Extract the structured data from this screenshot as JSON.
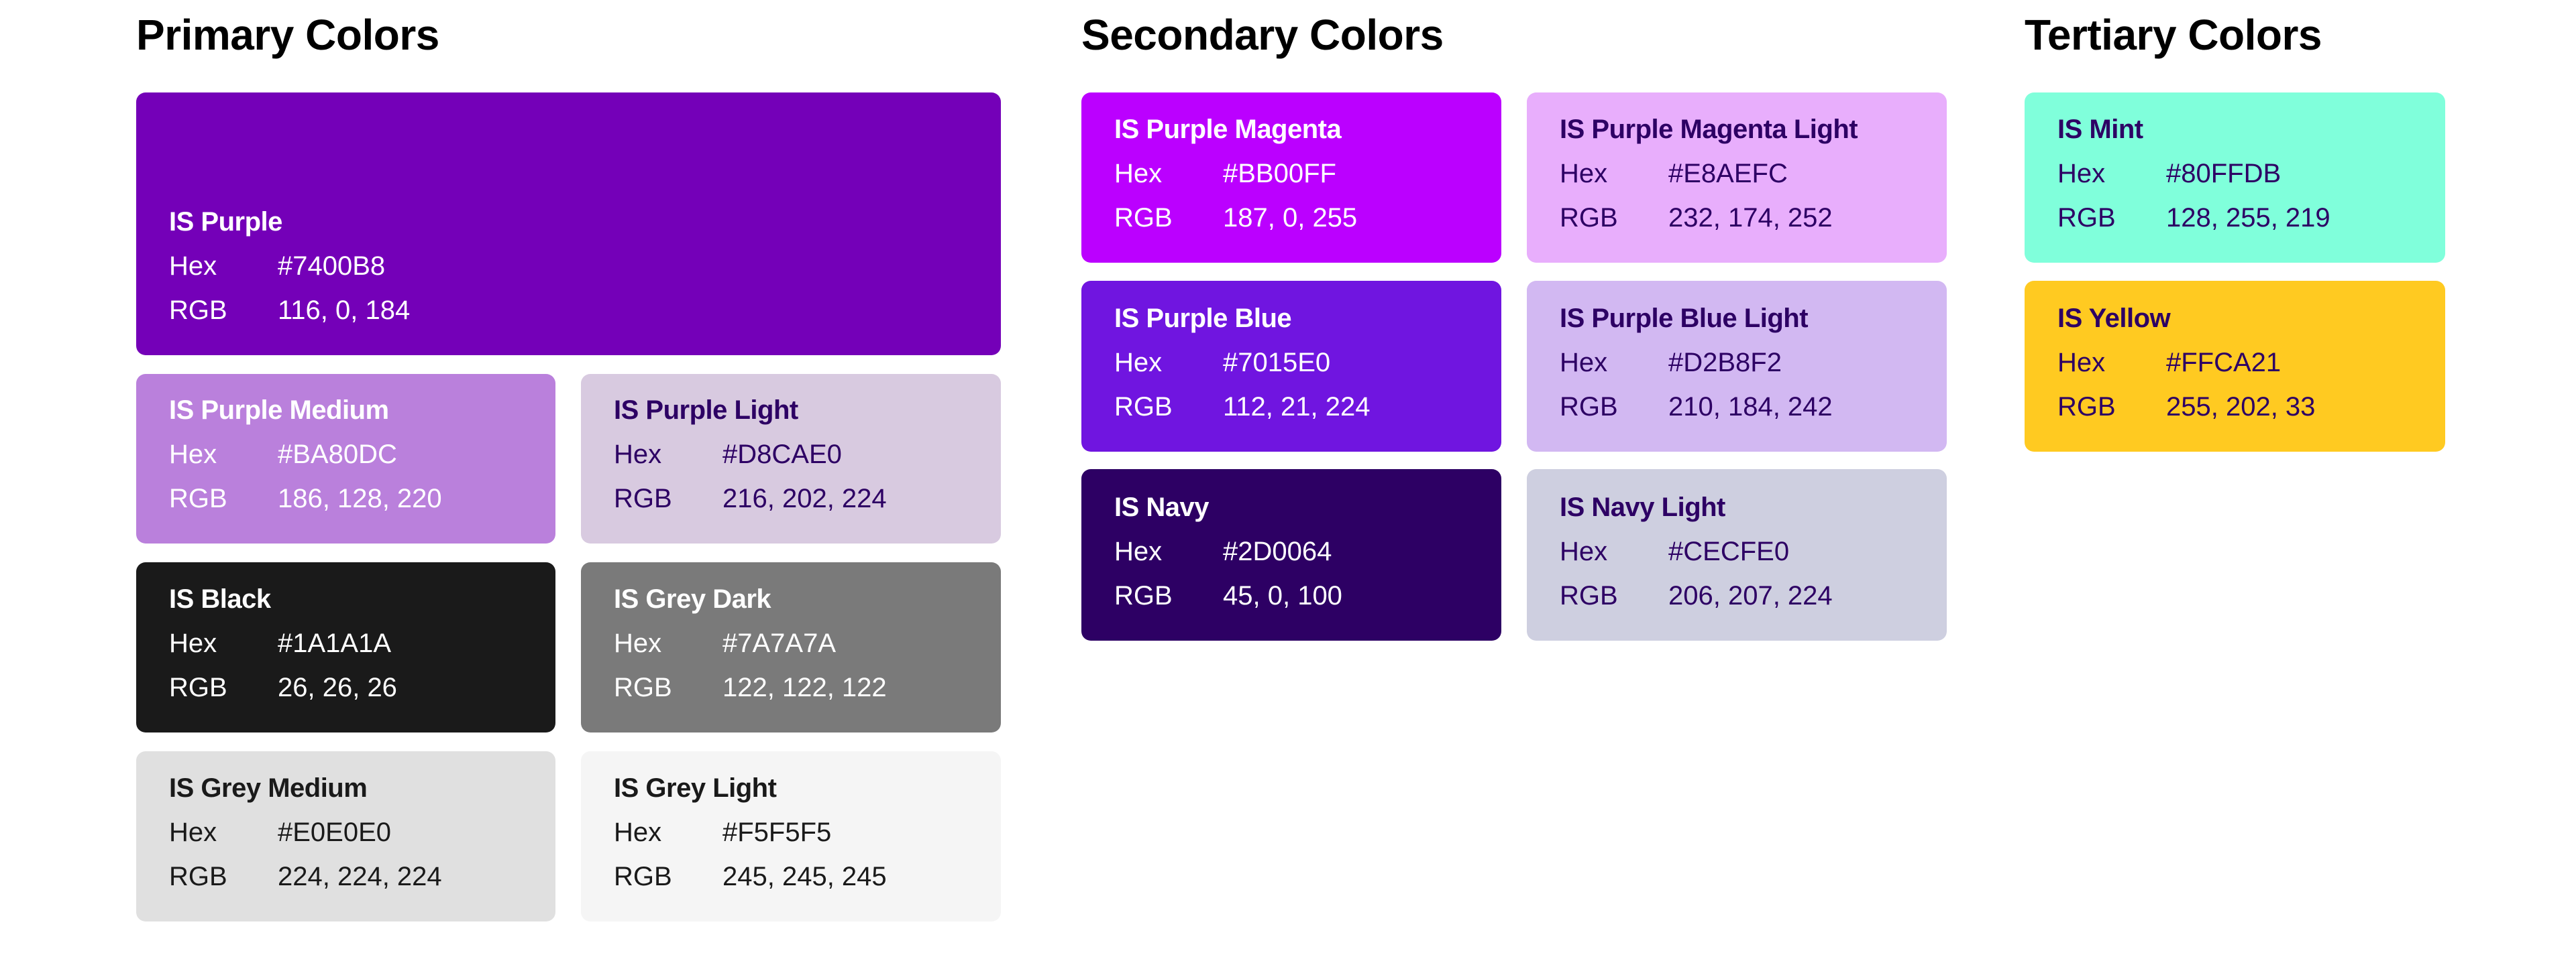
{
  "primary": {
    "title": "Primary Colors",
    "swatches": [
      {
        "name": "IS Purple",
        "hex_label": "Hex",
        "hex": "#7400B8",
        "rgb_label": "RGB",
        "rgb": "116, 0, 184",
        "color": "#7400B8"
      },
      {
        "name": "IS Purple Medium",
        "hex_label": "Hex",
        "hex": "#BA80DC",
        "rgb_label": "RGB",
        "rgb": "186, 128, 220",
        "color": "#BA80DC"
      },
      {
        "name": "IS Purple Light",
        "hex_label": "Hex",
        "hex": "#D8CAE0",
        "rgb_label": "RGB",
        "rgb": "216, 202, 224",
        "color": "#D8CAE0"
      },
      {
        "name": "IS Black",
        "hex_label": "Hex",
        "hex": "#1A1A1A",
        "rgb_label": "RGB",
        "rgb": "26, 26, 26",
        "color": "#1A1A1A"
      },
      {
        "name": "IS Grey Dark",
        "hex_label": "Hex",
        "hex": "#7A7A7A",
        "rgb_label": "RGB",
        "rgb": "122, 122, 122",
        "color": "#7A7A7A"
      },
      {
        "name": "IS Grey Medium",
        "hex_label": "Hex",
        "hex": "#E0E0E0",
        "rgb_label": "RGB",
        "rgb": "224, 224, 224",
        "color": "#E0E0E0"
      },
      {
        "name": "IS Grey Light",
        "hex_label": "Hex",
        "hex": "#F5F5F5",
        "rgb_label": "RGB",
        "rgb": "245, 245, 245",
        "color": "#F5F5F5"
      }
    ]
  },
  "secondary": {
    "title": "Secondary Colors",
    "swatches": [
      {
        "name": "IS Purple Magenta",
        "hex_label": "Hex",
        "hex": "#BB00FF",
        "rgb_label": "RGB",
        "rgb": "187, 0, 255",
        "color": "#BB00FF"
      },
      {
        "name": "IS Purple Magenta Light",
        "hex_label": "Hex",
        "hex": "#E8AEFC",
        "rgb_label": "RGB",
        "rgb": "232, 174, 252",
        "color": "#E8AEFC"
      },
      {
        "name": "IS Purple Blue",
        "hex_label": "Hex",
        "hex": "#7015E0",
        "rgb_label": "RGB",
        "rgb": "112, 21, 224",
        "color": "#7015E0"
      },
      {
        "name": "IS Purple Blue Light",
        "hex_label": "Hex",
        "hex": "#D2B8F2",
        "rgb_label": "RGB",
        "rgb": "210, 184, 242",
        "color": "#D2B8F2"
      },
      {
        "name": "IS Navy",
        "hex_label": "Hex",
        "hex": "#2D0064",
        "rgb_label": "RGB",
        "rgb": "45, 0, 100",
        "color": "#2D0064"
      },
      {
        "name": "IS Navy Light",
        "hex_label": "Hex",
        "hex": "#CECFE0",
        "rgb_label": "RGB",
        "rgb": "206, 207, 224",
        "color": "#CECFE0"
      }
    ]
  },
  "tertiary": {
    "title": "Tertiary Colors",
    "swatches": [
      {
        "name": "IS Mint",
        "hex_label": "Hex",
        "hex": "#80FFDB",
        "rgb_label": "RGB",
        "rgb": "128, 255, 219",
        "color": "#80FFDB"
      },
      {
        "name": "IS Yellow",
        "hex_label": "Hex",
        "hex": "#FFCA21",
        "rgb_label": "RGB",
        "rgb": "255, 202, 33",
        "color": "#FFCA21"
      }
    ]
  }
}
